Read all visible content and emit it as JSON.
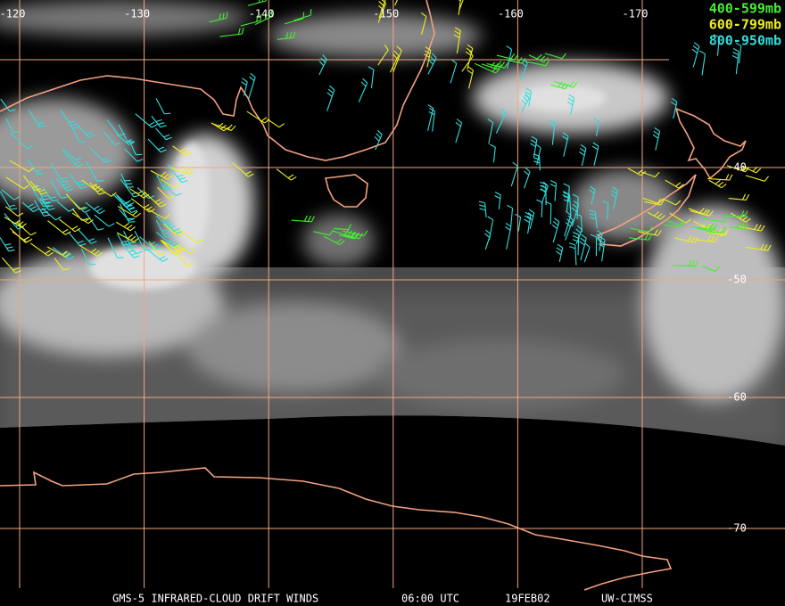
{
  "map": {
    "longitude_labels": [
      -120,
      -130,
      -140,
      -150,
      -160,
      -170
    ],
    "latitude_labels": [
      -40,
      -50,
      -60,
      -70
    ],
    "legend": [
      "400-599mb",
      "600-799mb",
      "800-950mb"
    ],
    "footer": [
      "GMS-5 INFRARED-CLOUD DRIFT WINDS",
      "06:00 UTC",
      "19FEB02",
      "UW-CIMSS"
    ]
  }
}
